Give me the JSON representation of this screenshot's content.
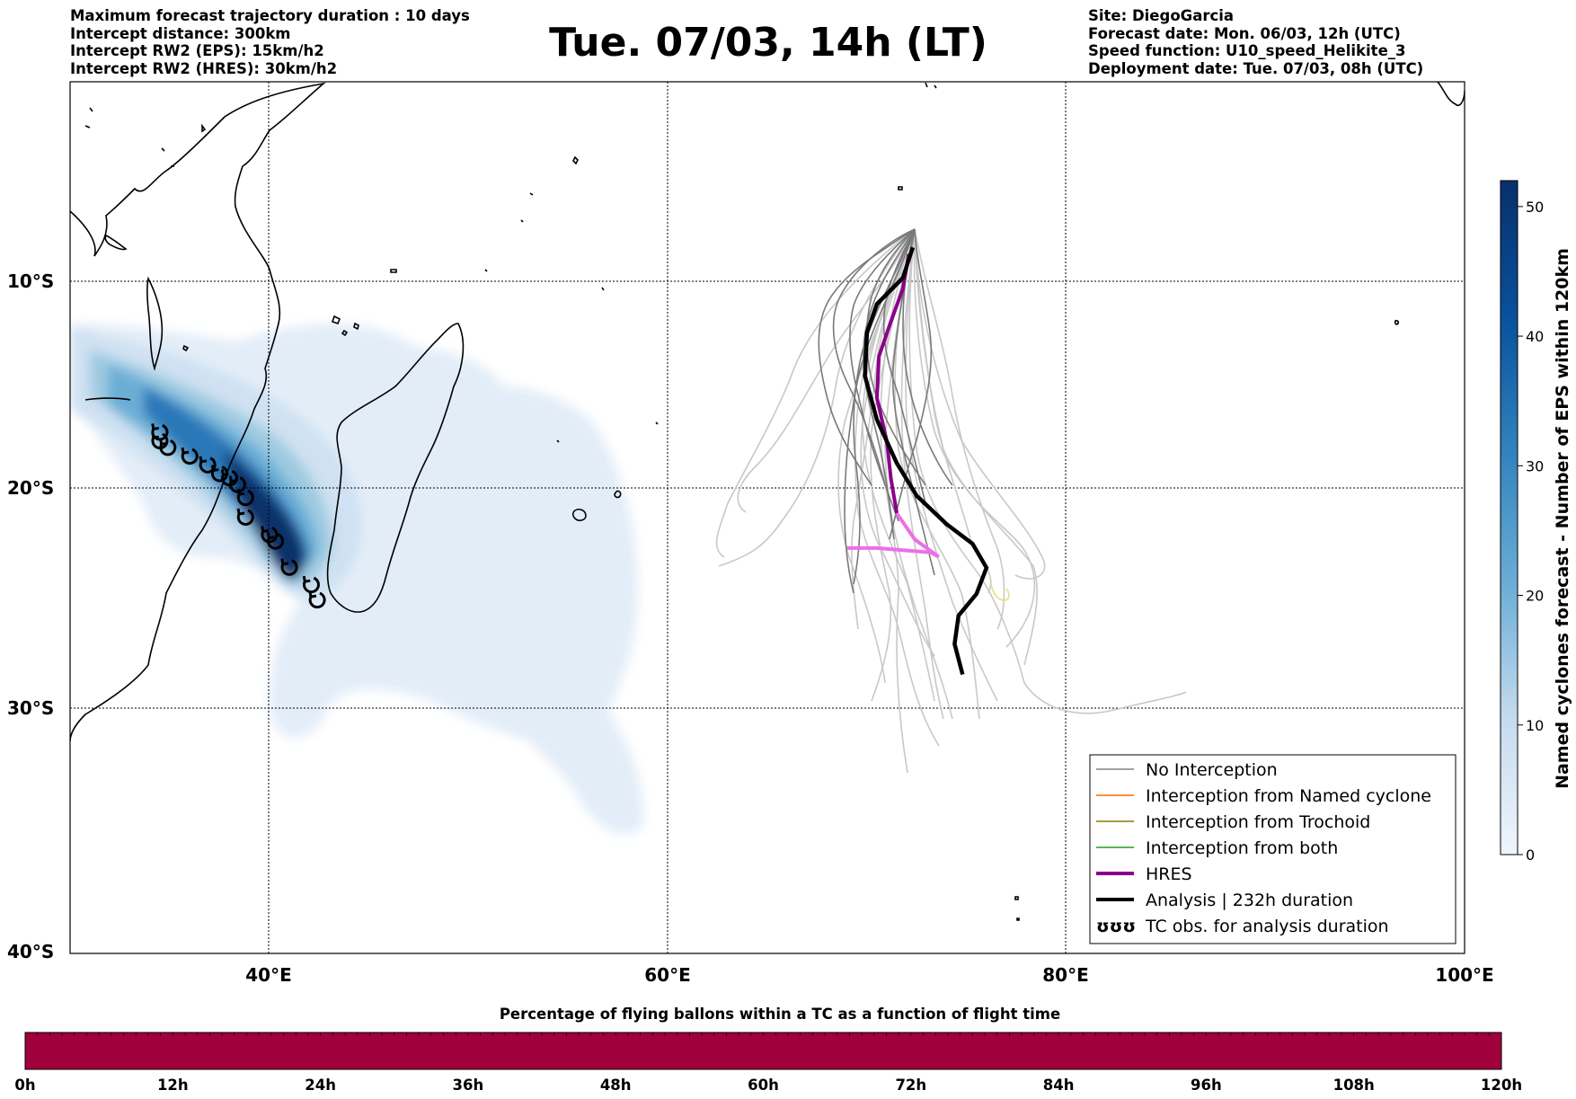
{
  "header": {
    "left": [
      "Maximum forecast trajectory duration : 10 days",
      "Intercept distance: 300km",
      "Intercept RW2 (EPS):  15km/h2",
      "Intercept RW2 (HRES): 30km/h2"
    ],
    "title": "Tue. 07/03, 14h (LT)",
    "right": [
      "Site: DiegoGarcia",
      "Forecast date: Mon. 06/03, 12h (UTC)",
      "Speed function: U10_speed_Helikite_3",
      "Deployment date: Tue. 07/03, 08h (UTC)"
    ]
  },
  "map": {
    "lat_labels": [
      "10°S",
      "20°S",
      "30°S",
      "40°S"
    ],
    "lon_labels": [
      "40°E",
      "60°E",
      "80°E",
      "100°E"
    ],
    "lon_range": [
      30,
      100
    ],
    "lat_range": [
      0,
      -40
    ],
    "gridlines": true
  },
  "legend": {
    "items": [
      {
        "label": "No Interception",
        "color": "#808080",
        "style": "thin"
      },
      {
        "label": "Interception from Named cyclone",
        "color": "#ff6a00",
        "style": "thin"
      },
      {
        "label": "Interception from Trochoid",
        "color": "#8a7a00",
        "style": "thin"
      },
      {
        "label": "Interception from both",
        "color": "#1fa01f",
        "style": "thin"
      },
      {
        "label": "HRES",
        "color": "#8b008b",
        "style": "thick"
      },
      {
        "label": "Analysis | 232h duration",
        "color": "#000000",
        "style": "thick"
      },
      {
        "label": "TC obs. for analysis duration",
        "color": "#000000",
        "style": "symbol",
        "symbol": "ʊʊʊ"
      }
    ]
  },
  "colorbar": {
    "title": "Named cyclones forecast - Number of EPS within 120km",
    "ticks": [
      "0",
      "10",
      "20",
      "30",
      "40",
      "50"
    ],
    "range": [
      0,
      52
    ],
    "colors": [
      "#e8f0fa",
      "#08306b"
    ]
  },
  "time_bar": {
    "title": "Percentage of flying ballons within a TC as a function of flight time",
    "ticks": [
      "0h",
      "12h",
      "24h",
      "36h",
      "48h",
      "60h",
      "72h",
      "84h",
      "96h",
      "108h",
      "120h"
    ],
    "color": "#a0003c"
  },
  "chart_data": {
    "type": "map",
    "hres_track": [
      [
        72.1,
        -7.9
      ],
      [
        71.8,
        -9.5
      ],
      [
        71.2,
        -11.0
      ],
      [
        70.6,
        -12.6
      ],
      [
        70.5,
        -14.5
      ],
      [
        71.0,
        -16.5
      ],
      [
        71.2,
        -18.2
      ],
      [
        71.5,
        -19.8
      ],
      [
        72.4,
        -21.0
      ],
      [
        73.6,
        -21.8
      ],
      [
        73.2,
        -21.6
      ],
      [
        70.5,
        -21.4
      ],
      [
        69.0,
        -21.4
      ]
    ],
    "analysis_track": [
      [
        72.3,
        -7.6
      ],
      [
        71.8,
        -9.0
      ],
      [
        70.5,
        -10.2
      ],
      [
        70.0,
        -11.5
      ],
      [
        69.9,
        -13.5
      ],
      [
        70.5,
        -15.5
      ],
      [
        71.5,
        -17.5
      ],
      [
        72.5,
        -19.0
      ],
      [
        74.0,
        -20.3
      ],
      [
        75.3,
        -21.2
      ],
      [
        76.0,
        -22.3
      ],
      [
        75.5,
        -23.5
      ],
      [
        74.6,
        -24.5
      ],
      [
        74.4,
        -25.8
      ],
      [
        74.8,
        -27.2
      ]
    ],
    "tc_obs": [
      [
        34.5,
        -16.1
      ],
      [
        34.5,
        -16.5
      ],
      [
        34.9,
        -16.8
      ],
      [
        36.0,
        -17.2
      ],
      [
        36.9,
        -17.6
      ],
      [
        37.5,
        -18.0
      ],
      [
        38.0,
        -18.2
      ],
      [
        38.4,
        -18.5
      ],
      [
        38.8,
        -19.1
      ],
      [
        38.8,
        -20.0
      ],
      [
        40.0,
        -20.8
      ],
      [
        40.3,
        -21.1
      ],
      [
        41.0,
        -22.3
      ],
      [
        42.1,
        -23.1
      ],
      [
        42.4,
        -23.8
      ]
    ]
  }
}
